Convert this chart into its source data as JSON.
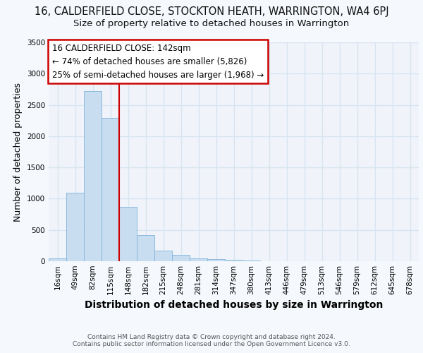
{
  "title_line1": "16, CALDERFIELD CLOSE, STOCKTON HEATH, WARRINGTON, WA4 6PJ",
  "title_line2": "Size of property relative to detached houses in Warrington",
  "xlabel": "Distribution of detached houses by size in Warrington",
  "ylabel": "Number of detached properties",
  "footnote1": "Contains HM Land Registry data © Crown copyright and database right 2024.",
  "footnote2": "Contains public sector information licensed under the Open Government Licence v3.0.",
  "categories": [
    "16sqm",
    "49sqm",
    "82sqm",
    "115sqm",
    "148sqm",
    "182sqm",
    "215sqm",
    "248sqm",
    "281sqm",
    "314sqm",
    "347sqm",
    "380sqm",
    "413sqm",
    "446sqm",
    "479sqm",
    "513sqm",
    "546sqm",
    "579sqm",
    "612sqm",
    "645sqm",
    "678sqm"
  ],
  "values": [
    50,
    1100,
    2720,
    2290,
    870,
    420,
    175,
    100,
    50,
    30,
    20,
    10,
    5,
    2,
    1,
    0,
    0,
    0,
    0,
    0,
    0
  ],
  "bar_color": "#c8ddf0",
  "bar_edge_color": "#7fb3d9",
  "annotation_text_line1": "16 CALDERFIELD CLOSE: 142sqm",
  "annotation_text_line2": "← 74% of detached houses are smaller (5,826)",
  "annotation_text_line3": "25% of semi-detached houses are larger (1,968) →",
  "annotation_box_color": "#ffffff",
  "annotation_border_color": "#cc0000",
  "highlight_line_color": "#cc0000",
  "background_color": "#f5f8fc",
  "plot_bg_color": "#f0f4fa",
  "ylim": [
    0,
    3500
  ],
  "yticks": [
    0,
    500,
    1000,
    1500,
    2000,
    2500,
    3000,
    3500
  ],
  "grid_color": "#d8e4f0",
  "title_fontsize": 10.5,
  "subtitle_fontsize": 9.5,
  "xlabel_fontsize": 10,
  "ylabel_fontsize": 9,
  "tick_fontsize": 7.5,
  "footnote_fontsize": 6.5,
  "annot_fontsize": 8.5
}
